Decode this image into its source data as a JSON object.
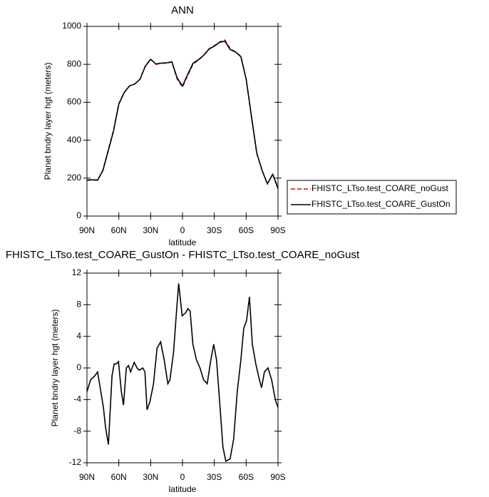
{
  "chart_data": [
    {
      "type": "line",
      "title": "ANN",
      "ylabel": "Planet bndry layer hgt (meters)",
      "xlabel": "latitude",
      "x": [
        90,
        85,
        80,
        75,
        70,
        65,
        60,
        55,
        50,
        45,
        40,
        35,
        30,
        25,
        20,
        15,
        10,
        5,
        0,
        -5,
        -10,
        -15,
        -20,
        -25,
        -30,
        -35,
        -40,
        -45,
        -50,
        -55,
        -60,
        -65,
        -70,
        -75,
        -80,
        -85,
        -90
      ],
      "series": [
        {
          "name": "FHISTC_LTso.test_COARE_noGust",
          "color": "#dd0000",
          "line_style": "dashed",
          "values": [
            190,
            192,
            190,
            242,
            348,
            452,
            592,
            652,
            686,
            696,
            722,
            792,
            828,
            800,
            806,
            806,
            812,
            722,
            680,
            742,
            802,
            822,
            848,
            882,
            898,
            918,
            928,
            882,
            866,
            842,
            722,
            522,
            330,
            242,
            170,
            222,
            150
          ]
        },
        {
          "name": "FHISTC_LTso.test_COARE_GustOn",
          "color": "#000000",
          "line_style": "solid",
          "values": [
            188,
            191,
            189,
            240,
            343,
            447,
            590,
            650,
            686,
            696,
            721,
            790,
            826,
            802,
            806,
            808,
            813,
            728,
            686,
            748,
            806,
            824,
            848,
            880,
            896,
            916,
            922,
            878,
            865,
            840,
            722,
            526,
            332,
            240,
            170,
            220,
            145
          ]
        }
      ],
      "xlim": [
        90,
        -90
      ],
      "xticks": [
        {
          "value": 90,
          "label": "90N"
        },
        {
          "value": 60,
          "label": "60N"
        },
        {
          "value": 30,
          "label": "30N"
        },
        0,
        {
          "value": -30,
          "label": "30S"
        },
        {
          "value": -60,
          "label": "60S"
        },
        {
          "value": -90,
          "label": "90S"
        }
      ],
      "ylim": [
        0,
        1000
      ],
      "yticks": [
        0,
        200,
        400,
        600,
        800,
        1000
      ],
      "legend": "right"
    },
    {
      "type": "line",
      "title": "FHISTC_LTso.test_COARE_GustOn - FHISTC_LTso.test_COARE_noGust",
      "ylabel": "Planet bndry layer hgt (meters)",
      "xlabel": "latitude",
      "x": [
        90,
        86.6,
        82.6,
        80,
        74.5,
        72.5,
        69.8,
        66.4,
        64.4,
        62.4,
        60.3,
        57.6,
        55.6,
        52.9,
        50.9,
        48.9,
        45.5,
        42.8,
        40.8,
        37.4,
        35.4,
        33.4,
        30.7,
        27.3,
        24,
        20.6,
        17.2,
        13.8,
        11.8,
        8.4,
        5.7,
        3.6,
        0.3,
        -3.1,
        -5.1,
        -7.2,
        -9.8,
        -13.2,
        -16.5,
        -19.9,
        -23.3,
        -26.7,
        -29.4,
        -32.1,
        -35.4,
        -38.1,
        -40.8,
        -44.9,
        -48.2,
        -51.6,
        -55,
        -57.7,
        -60.4,
        -63.1,
        -65.8,
        -69.1,
        -72.5,
        -74.5,
        -77.2,
        -80.6,
        -84,
        -87.4,
        -90
      ],
      "series": [
        {
          "name": "FHISTC_LTso.test_COARE_GustOn",
          "color": "#000000",
          "line_style": "solid",
          "values": [
            -3,
            -1.5,
            -1,
            -0.5,
            -5,
            -7.5,
            -9.7,
            -1,
            0.5,
            0.5,
            0.8,
            -3,
            -4.7,
            0,
            0.3,
            -0.5,
            0.7,
            0,
            -0.3,
            0,
            -0.5,
            -5.3,
            -4.3,
            -2,
            2.5,
            3.3,
            1,
            -2,
            -1.5,
            2,
            7,
            10.7,
            6.6,
            7,
            7.5,
            7.2,
            3,
            1,
            0,
            -1.5,
            -2,
            1,
            3,
            1,
            -5,
            -10,
            -11.8,
            -11.5,
            -9,
            -3,
            1,
            5,
            6,
            9,
            3,
            0.5,
            -1.5,
            -2.5,
            -0.5,
            0,
            -1.5,
            -4,
            -5
          ]
        }
      ],
      "xlim": [
        90,
        -90
      ],
      "xticks": [
        {
          "value": 90,
          "label": "90N"
        },
        {
          "value": 60,
          "label": "60N"
        },
        {
          "value": 30,
          "label": "30N"
        },
        0,
        {
          "value": -30,
          "label": "30S"
        },
        {
          "value": -60,
          "label": "60S"
        },
        {
          "value": -90,
          "label": "90S"
        }
      ],
      "ylim": [
        -12,
        12
      ],
      "yticks": [
        -12,
        -8,
        -4,
        0,
        4,
        8,
        12
      ]
    }
  ]
}
